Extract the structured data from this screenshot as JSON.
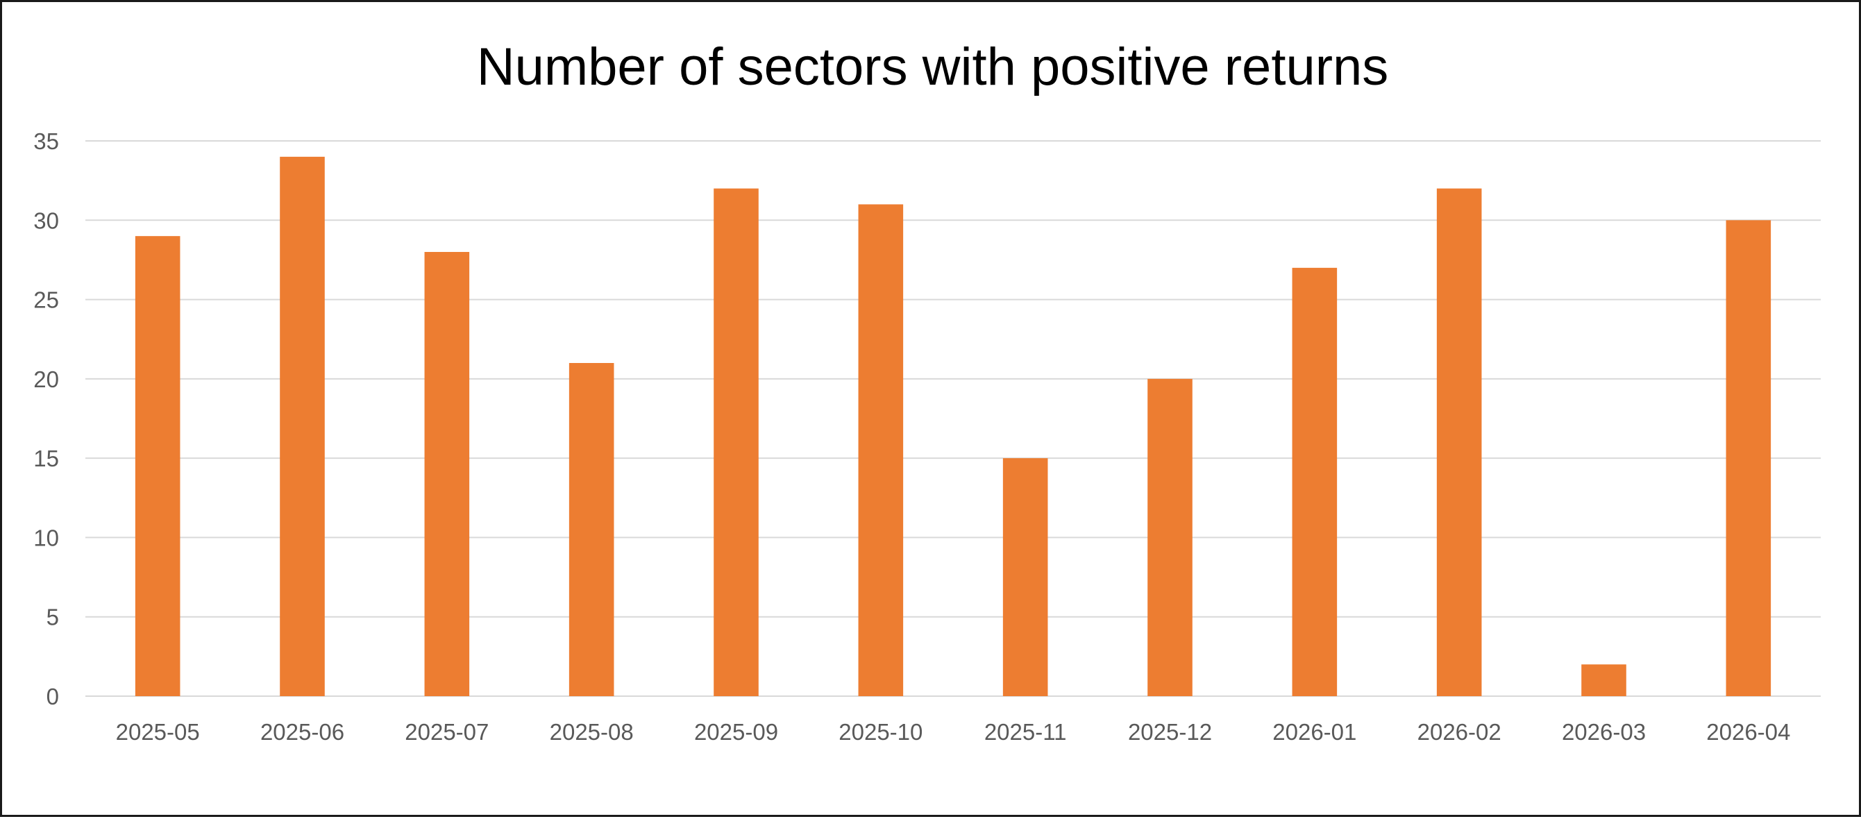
{
  "chart_data": {
    "type": "bar",
    "title": "Number of sectors with positive returns",
    "categories": [
      "2025-05",
      "2025-06",
      "2025-07",
      "2025-08",
      "2025-09",
      "2025-10",
      "2025-11",
      "2025-12",
      "2026-01",
      "2026-02",
      "2026-03",
      "2026-04"
    ],
    "values": [
      29,
      34,
      28,
      21,
      32,
      31,
      15,
      20,
      27,
      32,
      2,
      30
    ],
    "ylim": [
      0,
      35
    ],
    "yticks": [
      "0",
      "5",
      "10",
      "15",
      "20",
      "25",
      "30",
      "35"
    ],
    "grid": true,
    "legend": "none",
    "colors": {
      "bar": "#ED7D31",
      "grid": "#D9D9D9",
      "text": "#595959"
    }
  }
}
